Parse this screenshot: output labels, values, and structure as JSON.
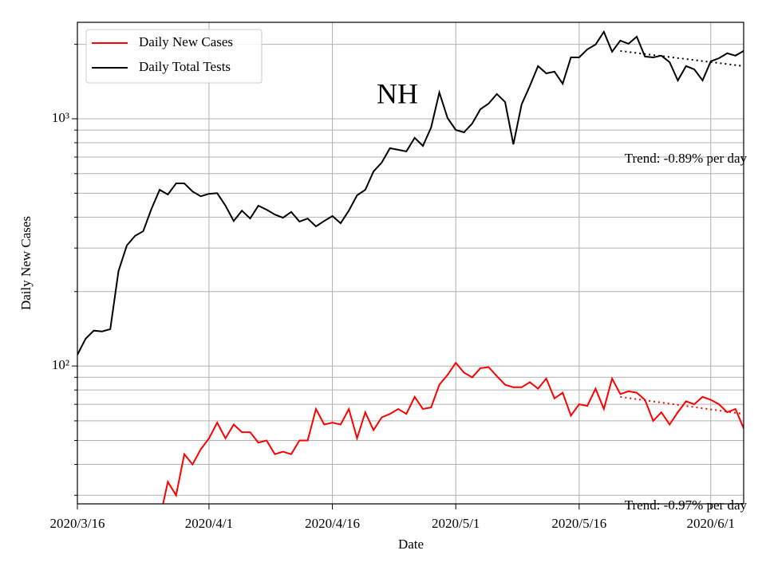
{
  "chart_data": {
    "type": "line",
    "title": "NH",
    "xlabel": "Date",
    "ylabel": "Daily New Cases",
    "x": [
      "2020/3/16",
      "2020/3/17",
      "2020/3/18",
      "2020/3/19",
      "2020/3/20",
      "2020/3/21",
      "2020/3/22",
      "2020/3/23",
      "2020/3/24",
      "2020/3/25",
      "2020/3/26",
      "2020/3/27",
      "2020/3/28",
      "2020/3/29",
      "2020/3/30",
      "2020/3/31",
      "2020/4/1",
      "2020/4/2",
      "2020/4/3",
      "2020/4/4",
      "2020/4/5",
      "2020/4/6",
      "2020/4/7",
      "2020/4/8",
      "2020/4/9",
      "2020/4/10",
      "2020/4/11",
      "2020/4/12",
      "2020/4/13",
      "2020/4/14",
      "2020/4/15",
      "2020/4/16",
      "2020/4/17",
      "2020/4/18",
      "2020/4/19",
      "2020/4/20",
      "2020/4/21",
      "2020/4/22",
      "2020/4/23",
      "2020/4/24",
      "2020/4/25",
      "2020/4/26",
      "2020/4/27",
      "2020/4/28",
      "2020/4/29",
      "2020/4/30",
      "2020/5/1",
      "2020/5/2",
      "2020/5/3",
      "2020/5/4",
      "2020/5/5",
      "2020/5/6",
      "2020/5/7",
      "2020/5/8",
      "2020/5/9",
      "2020/5/10",
      "2020/5/11",
      "2020/5/12",
      "2020/5/13",
      "2020/5/14",
      "2020/5/15",
      "2020/5/16",
      "2020/5/17",
      "2020/5/18",
      "2020/5/19",
      "2020/5/20",
      "2020/5/21",
      "2020/5/22",
      "2020/5/23",
      "2020/5/24",
      "2020/5/25",
      "2020/5/26",
      "2020/5/27",
      "2020/5/28",
      "2020/5/29",
      "2020/5/30",
      "2020/5/31",
      "2020/6/1",
      "2020/6/2",
      "2020/6/3",
      "2020/6/4",
      "2020/6/5"
    ],
    "series": [
      {
        "name": "Daily New Cases",
        "color": "#ff0000",
        "values": [
          null,
          null,
          null,
          null,
          null,
          null,
          null,
          null,
          null,
          null,
          24,
          34,
          30,
          44,
          40,
          46,
          51,
          59,
          51,
          58,
          54,
          54,
          49,
          50,
          44,
          45,
          44,
          50,
          50,
          67,
          58,
          59,
          58,
          67,
          51,
          65,
          55,
          62,
          64,
          67,
          64,
          75,
          67,
          68,
          84,
          92,
          103,
          94,
          90,
          98,
          99,
          91,
          84,
          82,
          82,
          86,
          81,
          89,
          74,
          78,
          63,
          70,
          69,
          81,
          67,
          89,
          77,
          79,
          78,
          73,
          60,
          65,
          58,
          65,
          72,
          70,
          75,
          73,
          70,
          65,
          67,
          56
        ]
      },
      {
        "name": "Daily Total Tests",
        "color": "#000000",
        "values": [
          111,
          129,
          139,
          138,
          141,
          242,
          307,
          336,
          351,
          432,
          516,
          494,
          548,
          548,
          508,
          486,
          497,
          500,
          445,
          386,
          425,
          395,
          445,
          429,
          410,
          398,
          420,
          384,
          395,
          367,
          386,
          404,
          378,
          425,
          490,
          516,
          612,
          665,
          760,
          749,
          738,
          837,
          777,
          922,
          1277,
          1007,
          901,
          881,
          957,
          1093,
          1152,
          1259,
          1169,
          788,
          1143,
          1356,
          1633,
          1527,
          1550,
          1386,
          1771,
          1771,
          1909,
          1996,
          2247,
          1866,
          2071,
          2011,
          2148,
          1785,
          1771,
          1800,
          1694,
          1429,
          1633,
          1585,
          1429,
          1708,
          1758,
          1841,
          1800,
          1880
        ]
      }
    ],
    "trends": [
      {
        "label": "Trend: -0.89% per day",
        "color": "#000000",
        "x": [
          "2020/5/21",
          "2020/6/5"
        ],
        "values": [
          1880,
          1633
        ]
      },
      {
        "label": "Trend: -0.97% per day",
        "color": "#ff0000",
        "x": [
          "2020/5/21",
          "2020/6/5"
        ],
        "values": [
          75,
          64
        ]
      }
    ],
    "xlim": [
      "2020/3/16",
      "2020/6/5"
    ],
    "xticks": [
      "2020/3/16",
      "2020/4/1",
      "2020/4/16",
      "2020/5/1",
      "2020/5/16",
      "2020/6/1"
    ],
    "yscale": "log",
    "ylim": [
      27.7,
      2455
    ],
    "yticks": [
      {
        "value": 100,
        "label": "10²"
      },
      {
        "value": 1000,
        "label": "10³"
      }
    ],
    "yminorticks": [
      30,
      40,
      50,
      60,
      70,
      80,
      90,
      200,
      300,
      400,
      500,
      600,
      700,
      800,
      900,
      2000
    ],
    "grid": true,
    "legend": "upper left"
  }
}
